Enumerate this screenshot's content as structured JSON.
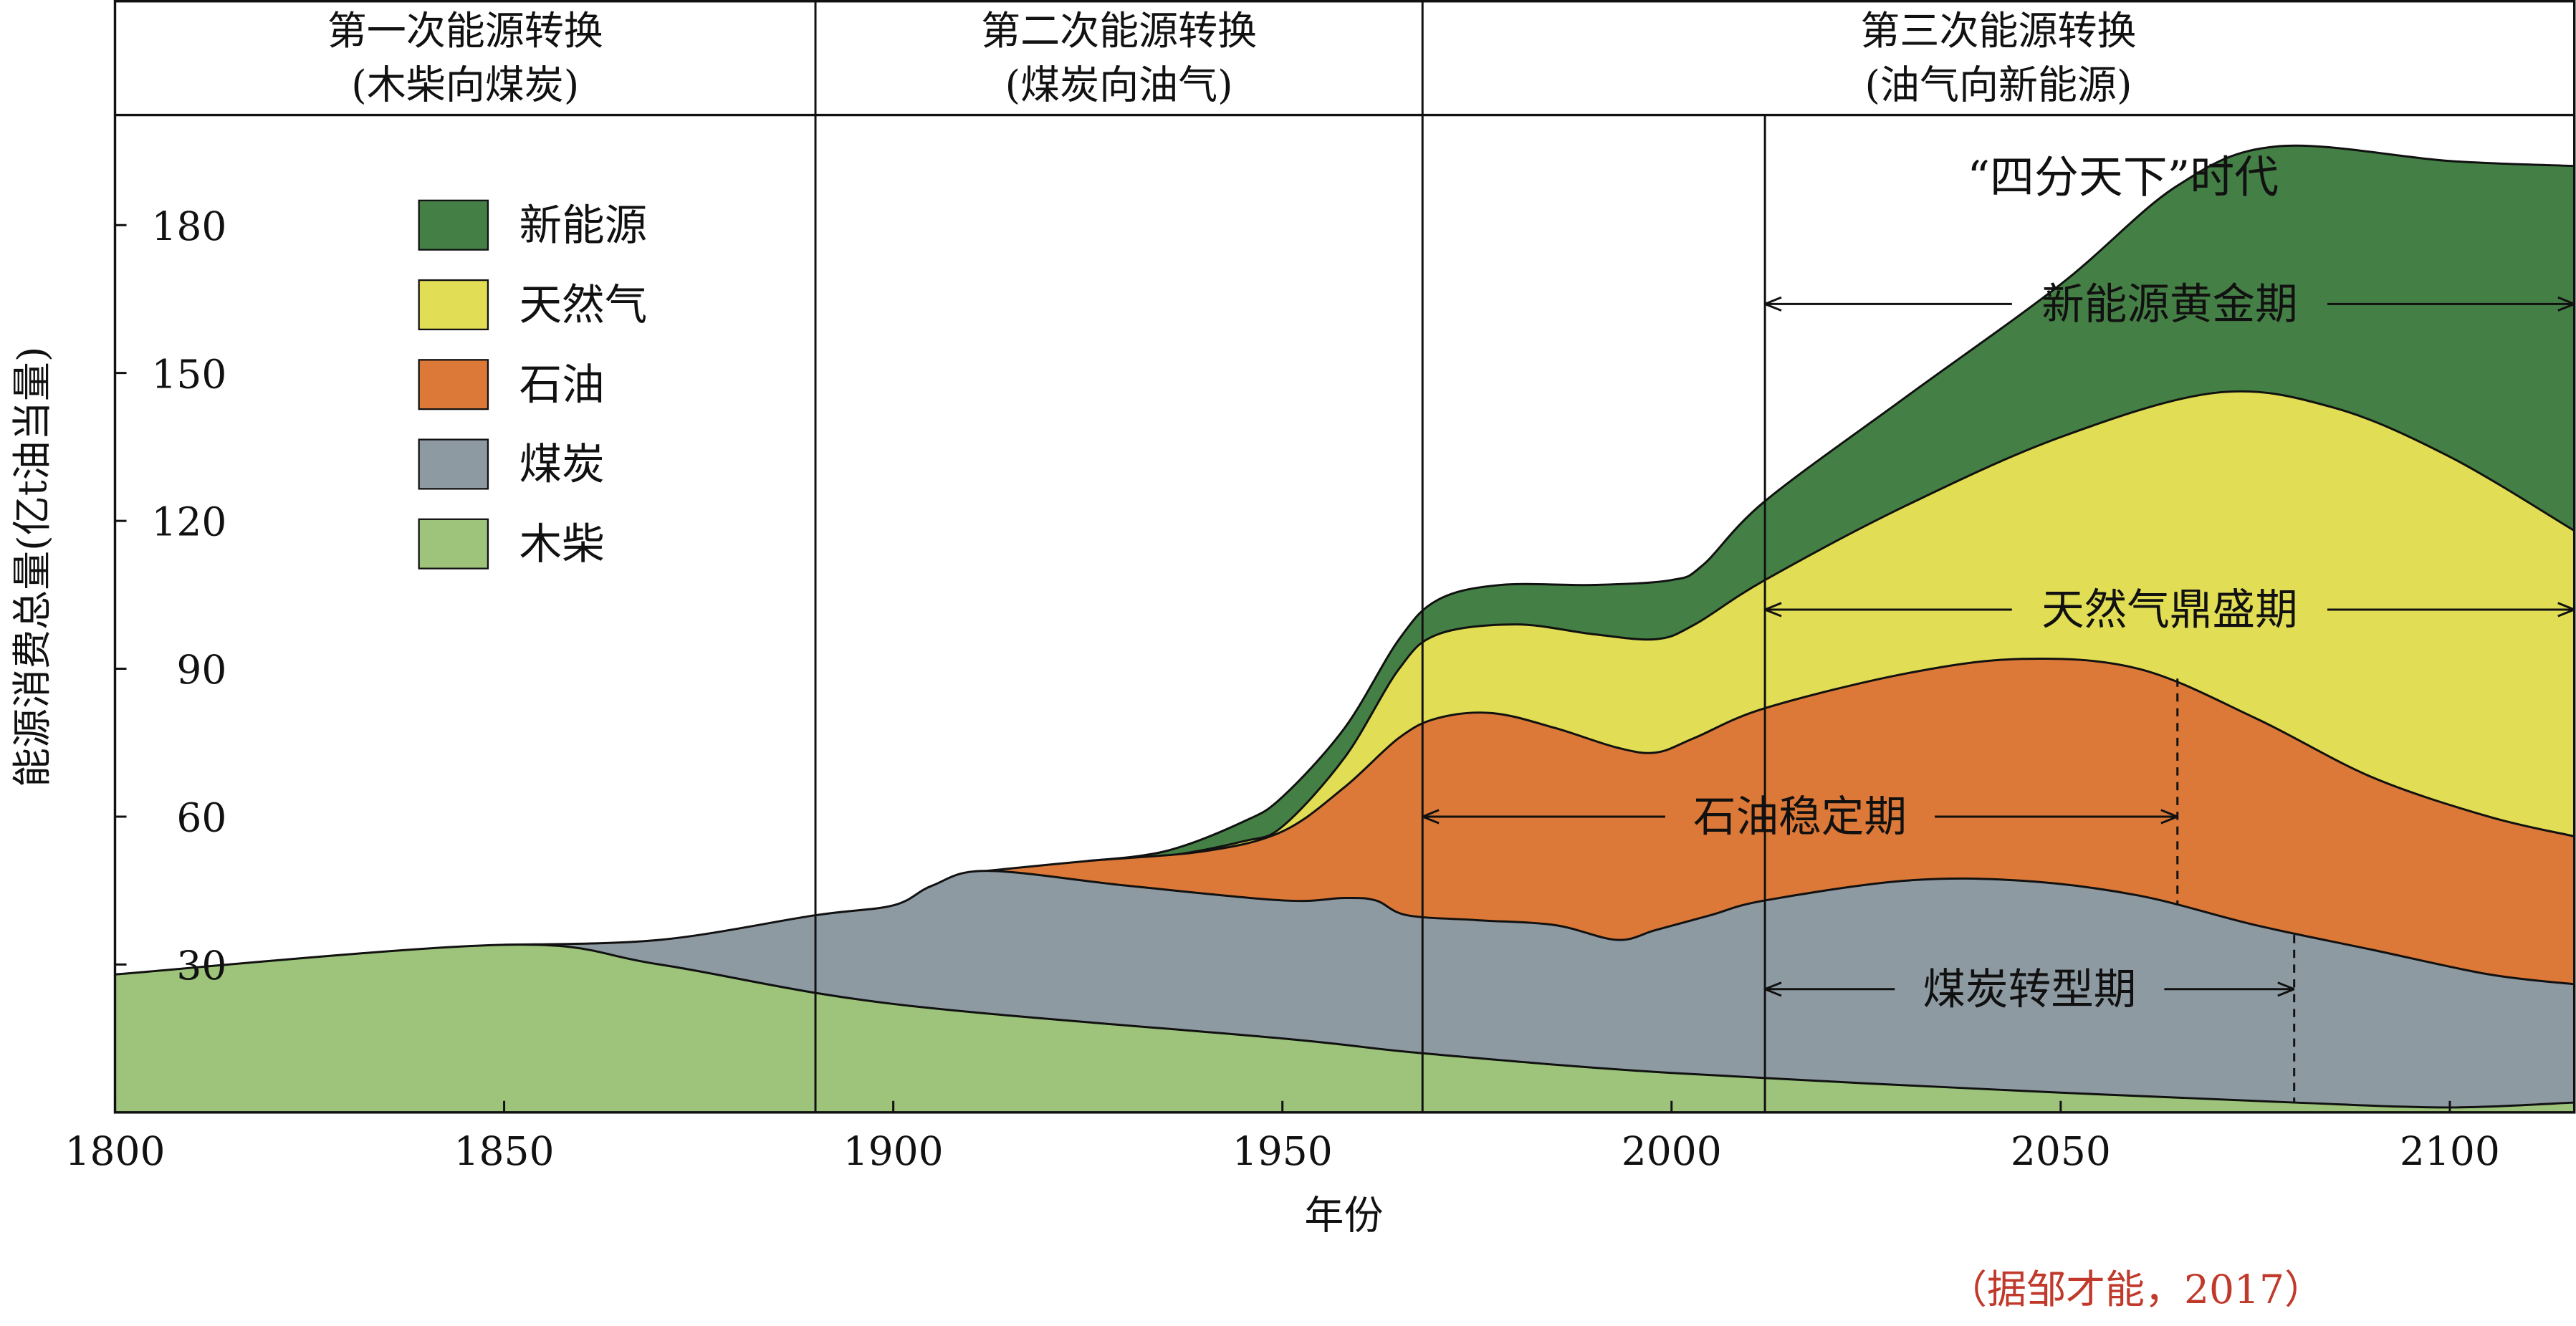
{
  "chart_data": {
    "type": "area",
    "stacked": true,
    "xlabel": "年份",
    "ylabel": "能源消费总量(亿t油当量)",
    "xlim": [
      1800,
      2116
    ],
    "ylim": [
      0,
      202
    ],
    "xticks": [
      1800,
      1850,
      1900,
      1950,
      2000,
      2050,
      2100
    ],
    "yticks": [
      30,
      60,
      90,
      120,
      150,
      180
    ],
    "legend_position": "top-left",
    "colors": {
      "新能源": "#448045",
      "天然气": "#e1dd54",
      "石油": "#dc7938",
      "煤炭": "#8e9aa2",
      "木柴": "#9dc47a"
    },
    "legend": [
      "新能源",
      "天然气",
      "石油",
      "煤炭",
      "木柴"
    ],
    "series_cumulative_top": [
      {
        "name": "新能源",
        "points": [
          [
            1925,
            51
          ],
          [
            1935,
            53
          ],
          [
            1945,
            59
          ],
          [
            1950,
            64
          ],
          [
            1958,
            78
          ],
          [
            1965,
            96
          ],
          [
            1970,
            104
          ],
          [
            1978,
            107
          ],
          [
            1990,
            107
          ],
          [
            2000,
            108
          ],
          [
            2004,
            111
          ],
          [
            2012,
            124
          ],
          [
            2030,
            145
          ],
          [
            2050,
            168
          ],
          [
            2065,
            188
          ],
          [
            2078,
            196
          ],
          [
            2100,
            193
          ],
          [
            2116,
            192
          ]
        ]
      },
      {
        "name": "天然气",
        "points": [
          [
            1925,
            51
          ],
          [
            1935,
            52
          ],
          [
            1945,
            55
          ],
          [
            1950,
            58
          ],
          [
            1958,
            72
          ],
          [
            1965,
            90
          ],
          [
            1970,
            97
          ],
          [
            1980,
            99
          ],
          [
            1990,
            97
          ],
          [
            1998,
            96
          ],
          [
            2003,
            99
          ],
          [
            2012,
            108
          ],
          [
            2030,
            123
          ],
          [
            2050,
            137
          ],
          [
            2070,
            146
          ],
          [
            2085,
            143
          ],
          [
            2100,
            133
          ],
          [
            2116,
            118
          ]
        ]
      },
      {
        "name": "石油",
        "points": [
          [
            1912,
            49
          ],
          [
            1925,
            51
          ],
          [
            1940,
            53
          ],
          [
            1950,
            57
          ],
          [
            1958,
            66
          ],
          [
            1965,
            76
          ],
          [
            1970,
            80
          ],
          [
            1977,
            81
          ],
          [
            1985,
            78
          ],
          [
            1993,
            74
          ],
          [
            1998,
            73
          ],
          [
            2003,
            76
          ],
          [
            2012,
            82
          ],
          [
            2030,
            89
          ],
          [
            2045,
            92
          ],
          [
            2060,
            90
          ],
          [
            2075,
            80
          ],
          [
            2090,
            68
          ],
          [
            2105,
            60
          ],
          [
            2116,
            56
          ]
        ]
      },
      {
        "name": "煤炭",
        "points": [
          [
            1850,
            34
          ],
          [
            1870,
            35
          ],
          [
            1890,
            40
          ],
          [
            1900,
            42
          ],
          [
            1905,
            46
          ],
          [
            1912,
            49
          ],
          [
            1930,
            46
          ],
          [
            1950,
            43
          ],
          [
            1958,
            43.5
          ],
          [
            1962,
            43
          ],
          [
            1966,
            40
          ],
          [
            1975,
            39
          ],
          [
            1985,
            38
          ],
          [
            1993,
            35
          ],
          [
            1998,
            37
          ],
          [
            2005,
            40
          ],
          [
            2012,
            43
          ],
          [
            2030,
            47
          ],
          [
            2045,
            47
          ],
          [
            2060,
            44
          ],
          [
            2075,
            38
          ],
          [
            2090,
            33
          ],
          [
            2105,
            28
          ],
          [
            2116,
            26
          ]
        ]
      },
      {
        "name": "木柴",
        "points": [
          [
            1800,
            28
          ],
          [
            1850,
            34
          ],
          [
            1870,
            30
          ],
          [
            1900,
            22
          ],
          [
            1950,
            15
          ],
          [
            1968,
            12
          ],
          [
            2000,
            8
          ],
          [
            2050,
            4
          ],
          [
            2080,
            2
          ],
          [
            2100,
            1
          ],
          [
            2116,
            2
          ]
        ]
      }
    ],
    "period_headers": [
      {
        "title": "第一次能源转换",
        "subtitle": "(木柴向煤炭)",
        "from": 1800,
        "to": 1890
      },
      {
        "title": "第二次能源转换",
        "subtitle": "(煤炭向油气)",
        "from": 1890,
        "to": 1968
      },
      {
        "title": "第三次能源转换",
        "subtitle": "(油气向新能源)",
        "from": 1968,
        "to": 2116
      }
    ],
    "phase_lines": [
      1890,
      1968,
      2012
    ],
    "annotations": [
      {
        "text": "“四分天下”时代",
        "year": 2058,
        "value": 190
      },
      {
        "text": "新能源黄金期",
        "from": 2012,
        "to": 2116,
        "value": 164
      },
      {
        "text": "天然气鼎盛期",
        "from": 2012,
        "to": 2116,
        "value": 102
      },
      {
        "text": "石油稳定期",
        "from": 1968,
        "to": 2065,
        "value": 60,
        "dash_from": 88,
        "dash_to": 42
      },
      {
        "text": "煤炭转型期",
        "from": 2012,
        "to": 2080,
        "value": 25,
        "dash_from": 36,
        "dash_to": 2
      }
    ],
    "source": "（据邹才能，2017）"
  }
}
